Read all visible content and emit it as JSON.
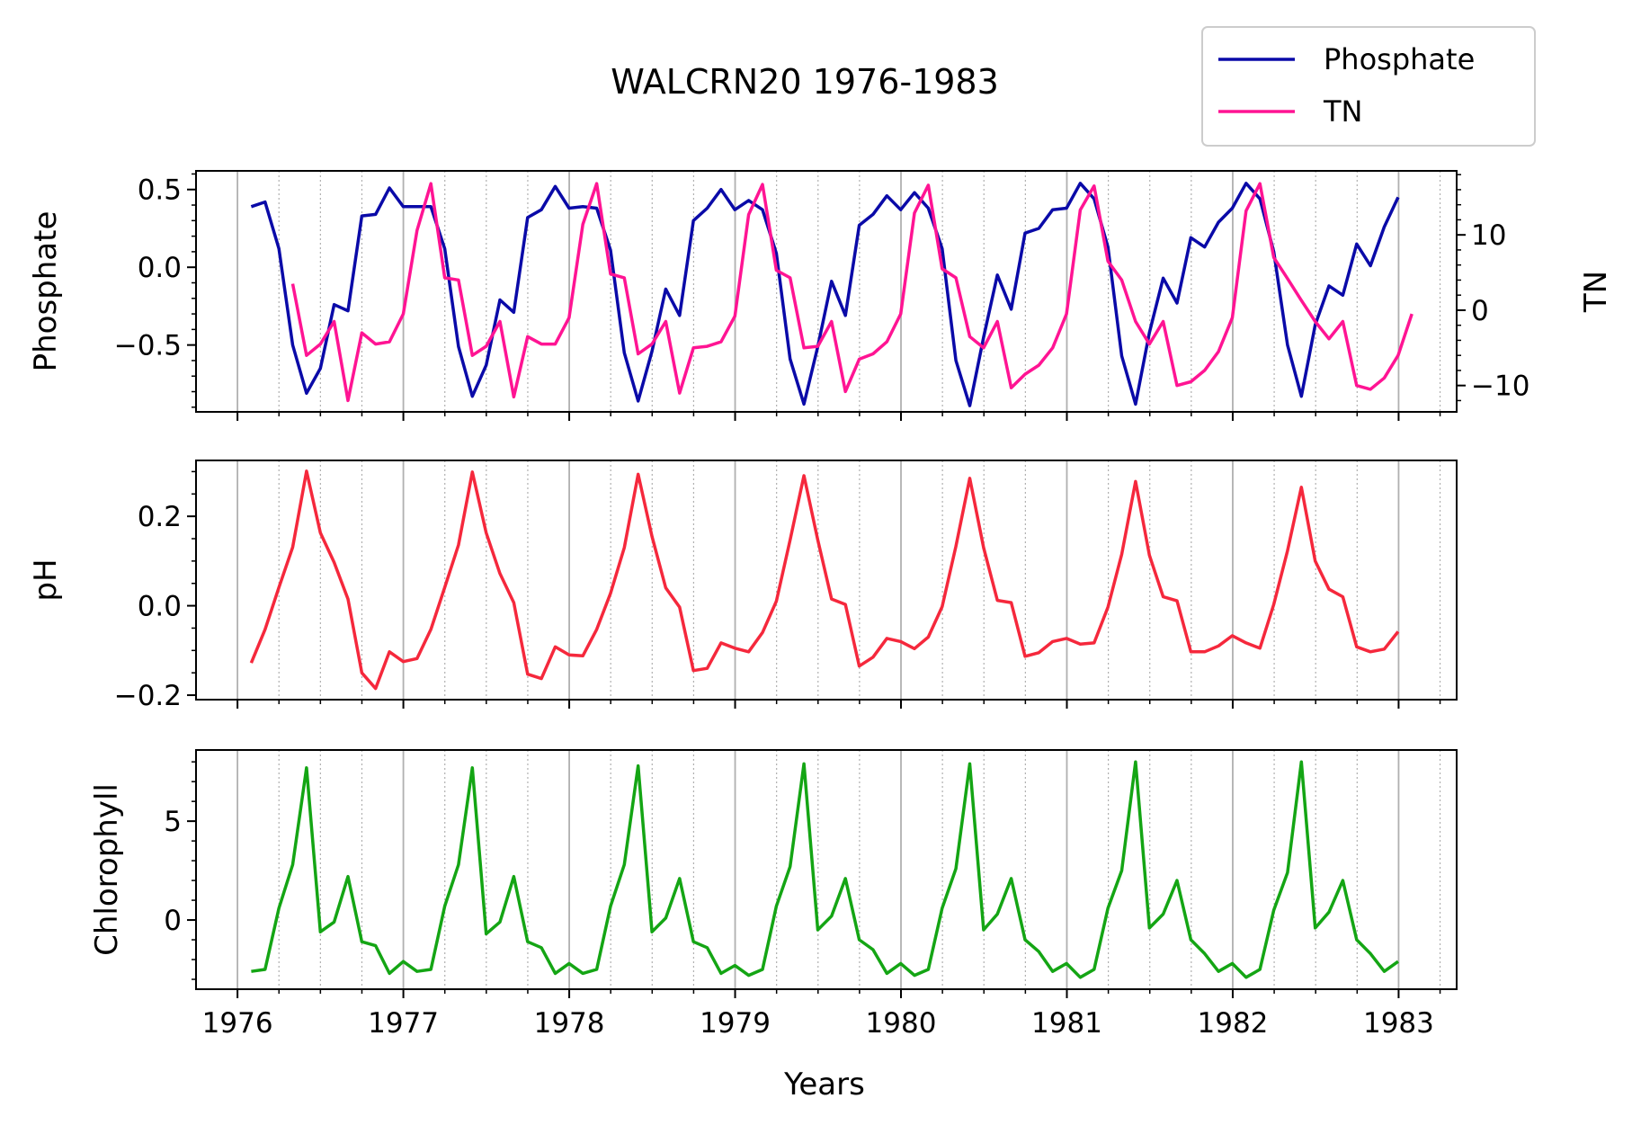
{
  "chart_data": {
    "title": "WALCRN20 1976-1983",
    "xlabel": "Years",
    "xticks": [
      "1976",
      "1977",
      "1978",
      "1979",
      "1980",
      "1981",
      "1982",
      "1983"
    ],
    "xlim": [
      1975.75,
      1983.35
    ],
    "x_major_grid": "yearly",
    "x_minor_grid": "quarterly",
    "legend": {
      "placement": "top-right",
      "entries": [
        {
          "label": "Phosphate",
          "color": "#0a0aa8"
        },
        {
          "label": "TN",
          "color": "#ff1493"
        }
      ]
    },
    "panels": [
      {
        "type": "line",
        "ylabel": "Phosphate",
        "ylim": [
          -0.93,
          0.62
        ],
        "yticks": [
          0.5,
          0.0,
          -0.5
        ],
        "ytick_labels": [
          "0.5",
          "0.0",
          "−0.5"
        ],
        "series": [
          {
            "name": "Phosphate",
            "color": "#0a0aa8",
            "x_start": 1976.083,
            "x_step": 0.0833,
            "values": [
              0.39,
              0.42,
              0.12,
              -0.5,
              -0.81,
              -0.65,
              -0.24,
              -0.28,
              0.33,
              0.34,
              0.51,
              0.39,
              0.39,
              0.39,
              0.12,
              -0.51,
              -0.83,
              -0.63,
              -0.21,
              -0.29,
              0.32,
              0.37,
              0.52,
              0.38,
              0.39,
              0.38,
              0.11,
              -0.55,
              -0.86,
              -0.54,
              -0.14,
              -0.31,
              0.3,
              0.38,
              0.5,
              0.37,
              0.43,
              0.37,
              0.09,
              -0.59,
              -0.88,
              -0.51,
              -0.09,
              -0.31,
              0.27,
              0.34,
              0.46,
              0.37,
              0.48,
              0.38,
              0.12,
              -0.6,
              -0.89,
              -0.45,
              -0.05,
              -0.27,
              0.22,
              0.25,
              0.37,
              0.38,
              0.54,
              0.44,
              0.13,
              -0.57,
              -0.88,
              -0.42,
              -0.07,
              -0.23,
              0.19,
              0.13,
              0.29,
              0.38,
              0.54,
              0.44,
              0.1,
              -0.5,
              -0.83,
              -0.37,
              -0.12,
              -0.18,
              0.15,
              0.01,
              0.26,
              0.45
            ]
          },
          {
            "name": "TN",
            "color": "#ff1493",
            "axis": "right",
            "x_start": 1976.333,
            "x_step": 0.0833,
            "values": [
              3.5,
              -6.0,
              -4.5,
              -1.5,
              -12.0,
              -3.0,
              -4.5,
              -4.2,
              -0.5,
              10.6,
              16.8,
              4.3,
              4.0,
              -6.0,
              -4.8,
              -1.5,
              -11.5,
              -3.5,
              -4.5,
              -4.5,
              -1.0,
              11.4,
              16.8,
              4.8,
              4.3,
              -5.8,
              -4.5,
              -1.5,
              -11.0,
              -5.0,
              -4.8,
              -4.2,
              -0.8,
              12.7,
              16.7,
              5.3,
              4.3,
              -5.0,
              -4.8,
              -1.5,
              -10.8,
              -6.5,
              -5.8,
              -4.2,
              -0.5,
              12.9,
              16.6,
              5.5,
              4.3,
              -3.5,
              -5.0,
              -1.5,
              -10.3,
              -8.5,
              -7.3,
              -5.0,
              -0.5,
              13.3,
              16.5,
              6.5,
              4.0,
              -1.5,
              -4.5,
              -1.5,
              -10.0,
              -9.5,
              -8.0,
              -5.5,
              -1.0,
              13.2,
              16.8,
              7.0,
              4.2,
              1.3,
              -1.5,
              -3.8,
              -1.5,
              -10.0,
              -10.5,
              -9.0,
              -6.0,
              -0.5
            ]
          }
        ],
        "y2label": "TN",
        "y2lim": [
          -13.5,
          18.5
        ],
        "y2ticks": [
          10,
          0,
          -10
        ],
        "y2tick_labels": [
          "10",
          "0",
          "−10"
        ]
      },
      {
        "type": "line",
        "ylabel": "pH",
        "ylim": [
          -0.21,
          0.325
        ],
        "yticks": [
          0.2,
          0.0,
          -0.2
        ],
        "ytick_labels": [
          "0.2",
          "0.0",
          "−0.2"
        ],
        "series": [
          {
            "name": "pH",
            "color": "#f5283c",
            "x_start": 1976.083,
            "x_step": 0.0833,
            "values": [
              -0.128,
              -0.053,
              0.041,
              0.131,
              0.301,
              0.163,
              0.097,
              0.015,
              -0.15,
              -0.185,
              -0.103,
              -0.125,
              -0.118,
              -0.053,
              0.041,
              0.136,
              0.299,
              0.163,
              0.072,
              0.007,
              -0.153,
              -0.163,
              -0.092,
              -0.11,
              -0.112,
              -0.053,
              0.028,
              0.13,
              0.294,
              0.155,
              0.04,
              -0.003,
              -0.145,
              -0.14,
              -0.083,
              -0.095,
              -0.103,
              -0.06,
              0.01,
              0.147,
              0.291,
              0.147,
              0.015,
              0.003,
              -0.135,
              -0.115,
              -0.073,
              -0.08,
              -0.096,
              -0.07,
              -0.002,
              0.133,
              0.285,
              0.13,
              0.012,
              0.007,
              -0.113,
              -0.105,
              -0.08,
              -0.073,
              -0.086,
              -0.083,
              -0.003,
              0.115,
              0.278,
              0.113,
              0.02,
              0.011,
              -0.103,
              -0.103,
              -0.09,
              -0.067,
              -0.083,
              -0.095,
              0.003,
              0.123,
              0.265,
              0.1,
              0.037,
              0.02,
              -0.092,
              -0.103,
              -0.097,
              -0.058
            ]
          }
        ]
      },
      {
        "type": "line",
        "ylabel": "Chlorophyll",
        "ylim": [
          -3.5,
          8.6
        ],
        "yticks": [
          5,
          0
        ],
        "ytick_labels": [
          "5",
          "0"
        ],
        "series": [
          {
            "name": "Chlorophyll",
            "color": "#14a514",
            "x_start": 1976.083,
            "x_step": 0.0833,
            "values": [
              -2.6,
              -2.5,
              0.6,
              2.8,
              7.7,
              -0.6,
              -0.1,
              2.2,
              -1.1,
              -1.3,
              -2.7,
              -2.1,
              -2.6,
              -2.5,
              0.7,
              2.8,
              7.7,
              -0.7,
              -0.1,
              2.2,
              -1.1,
              -1.4,
              -2.7,
              -2.2,
              -2.7,
              -2.5,
              0.7,
              2.8,
              7.8,
              -0.6,
              0.1,
              2.1,
              -1.1,
              -1.4,
              -2.7,
              -2.3,
              -2.8,
              -2.5,
              0.7,
              2.7,
              7.9,
              -0.5,
              0.2,
              2.1,
              -1.0,
              -1.5,
              -2.7,
              -2.2,
              -2.8,
              -2.5,
              0.6,
              2.6,
              7.9,
              -0.5,
              0.3,
              2.1,
              -1.0,
              -1.6,
              -2.6,
              -2.2,
              -2.9,
              -2.5,
              0.6,
              2.5,
              8.0,
              -0.4,
              0.3,
              2.0,
              -1.0,
              -1.7,
              -2.6,
              -2.2,
              -2.9,
              -2.5,
              0.5,
              2.4,
              8.0,
              -0.4,
              0.4,
              2.0,
              -1.0,
              -1.7,
              -2.6,
              -2.1
            ]
          }
        ]
      }
    ]
  }
}
